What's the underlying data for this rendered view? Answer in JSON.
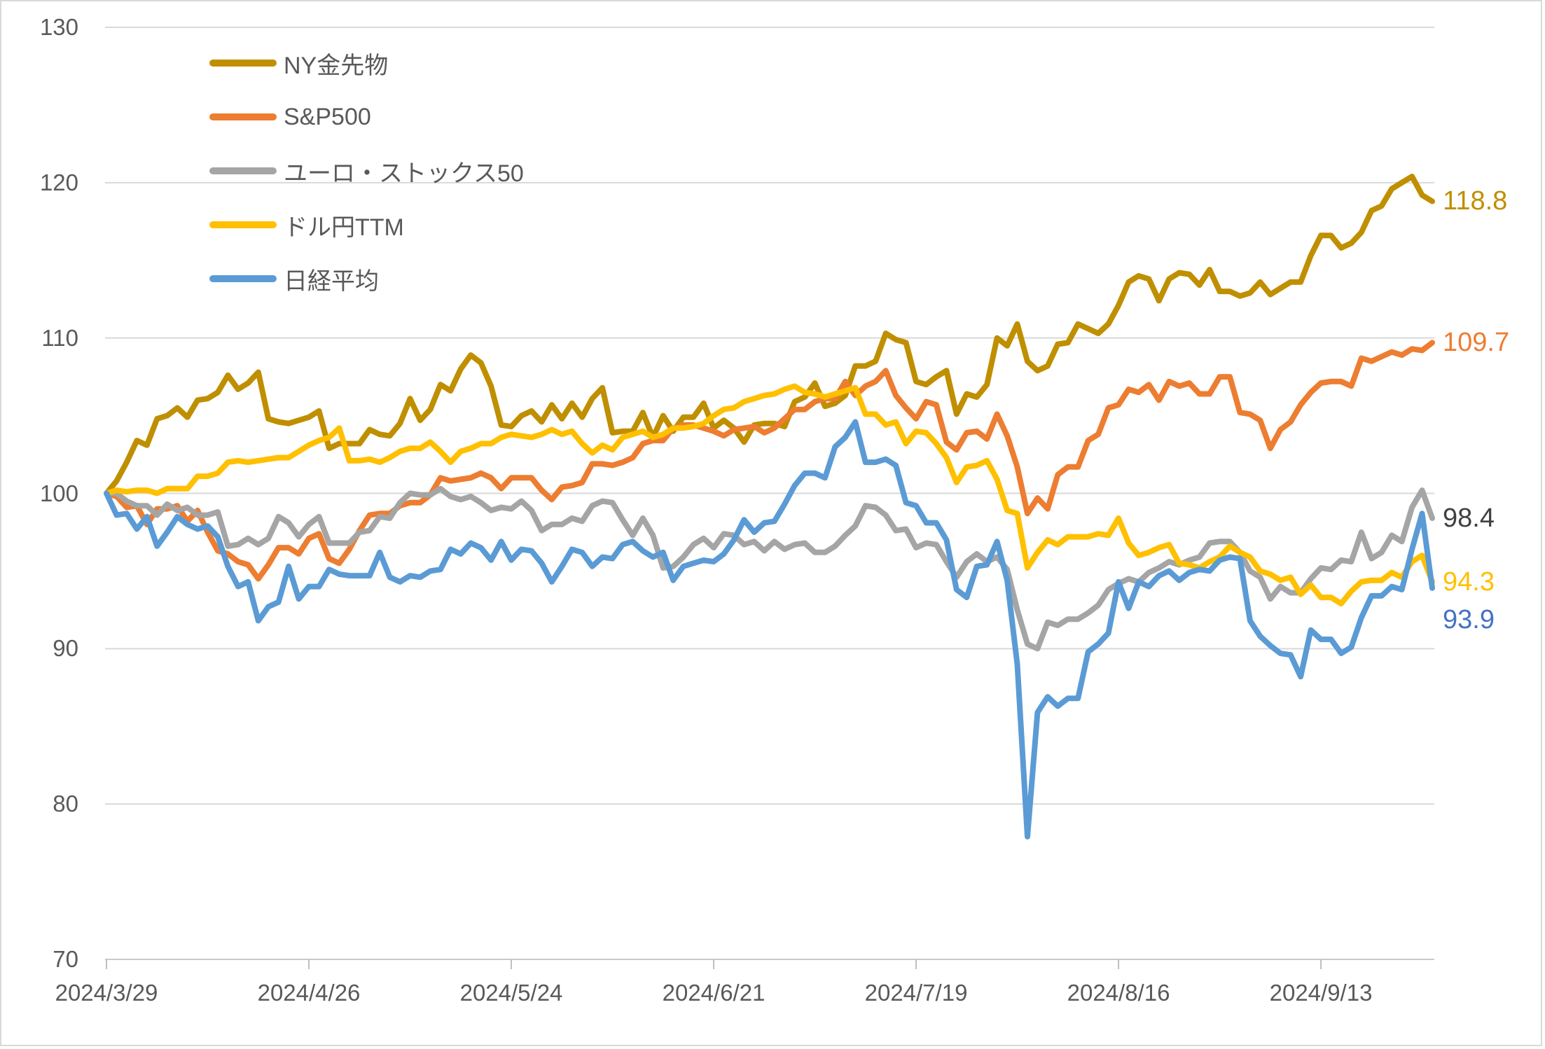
{
  "chart_data": {
    "type": "line",
    "title": "",
    "grid": "horizontal",
    "legend_position": "top-left-vertical",
    "ylim": [
      70,
      130
    ],
    "y_ticks": [
      130,
      120,
      110,
      100,
      90,
      80,
      70
    ],
    "x_axis": {
      "tick_labels": [
        "2024/3/29",
        "2024/4/26",
        "2024/5/24",
        "2024/6/21",
        "2024/7/19",
        "2024/8/16",
        "2024/9/13"
      ],
      "tick_day_indices": [
        0,
        20,
        40,
        60,
        80,
        100,
        120
      ]
    },
    "dates": [
      "2024/3/29",
      "2024/4/1",
      "2024/4/2",
      "2024/4/3",
      "2024/4/4",
      "2024/4/5",
      "2024/4/8",
      "2024/4/9",
      "2024/4/10",
      "2024/4/11",
      "2024/4/12",
      "2024/4/15",
      "2024/4/16",
      "2024/4/17",
      "2024/4/18",
      "2024/4/19",
      "2024/4/22",
      "2024/4/23",
      "2024/4/24",
      "2024/4/25",
      "2024/4/26",
      "2024/4/29",
      "2024/4/30",
      "2024/5/1",
      "2024/5/2",
      "2024/5/3",
      "2024/5/6",
      "2024/5/7",
      "2024/5/8",
      "2024/5/9",
      "2024/5/10",
      "2024/5/13",
      "2024/5/14",
      "2024/5/15",
      "2024/5/16",
      "2024/5/17",
      "2024/5/20",
      "2024/5/21",
      "2024/5/22",
      "2024/5/23",
      "2024/5/24",
      "2024/5/27",
      "2024/5/28",
      "2024/5/29",
      "2024/5/30",
      "2024/5/31",
      "2024/6/3",
      "2024/6/4",
      "2024/6/5",
      "2024/6/6",
      "2024/6/7",
      "2024/6/10",
      "2024/6/11",
      "2024/6/12",
      "2024/6/13",
      "2024/6/14",
      "2024/6/17",
      "2024/6/18",
      "2024/6/19",
      "2024/6/20",
      "2024/6/21",
      "2024/6/24",
      "2024/6/25",
      "2024/6/26",
      "2024/6/27",
      "2024/6/28",
      "2024/7/1",
      "2024/7/2",
      "2024/7/3",
      "2024/7/4",
      "2024/7/5",
      "2024/7/8",
      "2024/7/9",
      "2024/7/10",
      "2024/7/11",
      "2024/7/12",
      "2024/7/15",
      "2024/7/16",
      "2024/7/17",
      "2024/7/18",
      "2024/7/19",
      "2024/7/22",
      "2024/7/23",
      "2024/7/24",
      "2024/7/25",
      "2024/7/26",
      "2024/7/29",
      "2024/7/30",
      "2024/7/31",
      "2024/8/1",
      "2024/8/2",
      "2024/8/5",
      "2024/8/6",
      "2024/8/7",
      "2024/8/8",
      "2024/8/9",
      "2024/8/12",
      "2024/8/13",
      "2024/8/14",
      "2024/8/15",
      "2024/8/16",
      "2024/8/19",
      "2024/8/20",
      "2024/8/21",
      "2024/8/22",
      "2024/8/23",
      "2024/8/26",
      "2024/8/27",
      "2024/8/28",
      "2024/8/29",
      "2024/8/30",
      "2024/9/2",
      "2024/9/3",
      "2024/9/4",
      "2024/9/5",
      "2024/9/6",
      "2024/9/9",
      "2024/9/10",
      "2024/9/11",
      "2024/9/12",
      "2024/9/13",
      "2024/9/16",
      "2024/9/17",
      "2024/9/18",
      "2024/9/19",
      "2024/9/20",
      "2024/9/23",
      "2024/9/24",
      "2024/9/25",
      "2024/9/26",
      "2024/9/27",
      "2024/9/30"
    ],
    "series": [
      {
        "name": "NY金先物",
        "color": "#BF8F00",
        "end_label": "118.8",
        "end_label_color": "#BF8F00",
        "values": [
          100.0,
          100.8,
          102.0,
          103.4,
          103.1,
          104.8,
          105.0,
          105.5,
          104.9,
          106.0,
          106.1,
          106.5,
          107.6,
          106.7,
          107.1,
          107.8,
          104.8,
          104.6,
          104.5,
          104.7,
          104.9,
          105.3,
          102.9,
          103.2,
          103.2,
          103.2,
          104.1,
          103.8,
          103.7,
          104.5,
          106.1,
          104.7,
          105.4,
          107.0,
          106.6,
          108.0,
          108.9,
          108.4,
          106.9,
          104.4,
          104.3,
          105.0,
          105.3,
          104.6,
          105.7,
          104.8,
          105.8,
          104.9,
          106.1,
          106.8,
          103.9,
          104.0,
          104.0,
          105.2,
          103.6,
          105.0,
          104.0,
          104.9,
          104.9,
          105.8,
          104.2,
          104.7,
          104.2,
          103.3,
          104.4,
          104.5,
          104.5,
          104.3,
          105.9,
          106.2,
          107.1,
          105.6,
          105.8,
          106.3,
          108.2,
          108.2,
          108.5,
          110.3,
          109.9,
          109.7,
          107.2,
          107.0,
          107.5,
          107.9,
          105.1,
          106.4,
          106.2,
          107.0,
          110.0,
          109.5,
          110.9,
          108.5,
          107.9,
          108.2,
          109.6,
          109.7,
          110.9,
          110.6,
          110.3,
          110.9,
          112.1,
          113.6,
          114.0,
          113.8,
          112.4,
          113.8,
          114.2,
          114.1,
          113.4,
          114.4,
          113.0,
          113.0,
          112.7,
          112.9,
          113.6,
          112.8,
          113.2,
          113.6,
          113.6,
          115.3,
          116.6,
          116.6,
          115.8,
          116.1,
          116.8,
          118.2,
          118.5,
          119.6,
          120.0,
          120.4,
          119.2,
          118.8
        ]
      },
      {
        "name": "S&P500",
        "color": "#ED7D31",
        "end_label": "109.7",
        "end_label_color": "#ED7D31",
        "values": [
          100.0,
          99.8,
          99.1,
          99.2,
          98.0,
          99.0,
          99.0,
          99.2,
          98.2,
          98.9,
          97.5,
          96.3,
          96.1,
          95.6,
          95.4,
          94.5,
          95.4,
          96.5,
          96.5,
          96.1,
          97.1,
          97.4,
          95.8,
          95.5,
          96.4,
          97.6,
          98.6,
          98.7,
          98.7,
          99.2,
          99.4,
          99.4,
          99.9,
          101.0,
          100.8,
          100.9,
          101.0,
          101.3,
          101.0,
          100.3,
          101.0,
          101.0,
          101.0,
          100.2,
          99.6,
          100.4,
          100.5,
          100.7,
          101.9,
          101.9,
          101.8,
          102.0,
          102.3,
          103.2,
          103.4,
          103.4,
          104.2,
          104.4,
          104.4,
          104.2,
          104.0,
          103.7,
          104.1,
          104.2,
          104.3,
          103.9,
          104.2,
          104.8,
          105.4,
          105.4,
          105.9,
          106.1,
          106.1,
          107.2,
          106.3,
          106.9,
          107.2,
          107.9,
          106.3,
          105.5,
          104.8,
          105.9,
          105.7,
          103.3,
          102.8,
          103.9,
          104.0,
          103.5,
          105.1,
          103.7,
          101.7,
          98.7,
          99.7,
          99.0,
          101.2,
          101.7,
          101.7,
          103.4,
          103.8,
          105.5,
          105.7,
          106.7,
          106.5,
          107.0,
          106.0,
          107.2,
          106.9,
          107.1,
          106.4,
          106.4,
          107.5,
          107.5,
          105.2,
          105.1,
          104.7,
          102.9,
          104.1,
          104.6,
          105.7,
          106.5,
          107.1,
          107.2,
          107.2,
          106.9,
          108.7,
          108.5,
          108.8,
          109.1,
          108.9,
          109.3,
          109.2,
          109.7
        ]
      },
      {
        "name": "ユーロ・ストックス50",
        "color": "#A5A5A5",
        "end_label": "98.4",
        "end_label_color": "#404040",
        "values": [
          100.0,
          100.0,
          99.5,
          99.2,
          99.2,
          98.6,
          99.3,
          98.9,
          99.1,
          98.6,
          98.6,
          98.8,
          96.6,
          96.7,
          97.1,
          96.7,
          97.1,
          98.5,
          98.1,
          97.2,
          98.0,
          98.5,
          96.8,
          96.8,
          96.8,
          97.5,
          97.6,
          98.5,
          98.4,
          99.4,
          100.0,
          99.9,
          99.9,
          100.3,
          99.8,
          99.6,
          99.8,
          99.4,
          98.9,
          99.1,
          99.0,
          99.5,
          98.9,
          97.6,
          98.0,
          98.0,
          98.4,
          98.2,
          99.2,
          99.5,
          99.4,
          98.3,
          97.3,
          98.4,
          97.3,
          95.2,
          95.3,
          95.9,
          96.7,
          97.1,
          96.5,
          97.4,
          97.3,
          96.7,
          96.9,
          96.3,
          96.9,
          96.4,
          96.7,
          96.8,
          96.2,
          96.2,
          96.6,
          97.3,
          97.9,
          99.2,
          99.1,
          98.6,
          97.6,
          97.7,
          96.5,
          96.8,
          96.7,
          95.6,
          94.6,
          95.6,
          96.1,
          95.6,
          95.9,
          95.1,
          92.5,
          90.3,
          90.0,
          91.7,
          91.5,
          91.9,
          91.9,
          92.3,
          92.8,
          93.8,
          94.2,
          94.5,
          94.3,
          94.9,
          95.2,
          95.6,
          95.4,
          95.7,
          95.9,
          96.8,
          96.9,
          96.9,
          96.2,
          95.0,
          94.6,
          93.2,
          94.0,
          93.6,
          93.6,
          94.5,
          95.2,
          95.1,
          95.7,
          95.6,
          97.5,
          95.8,
          96.2,
          97.3,
          96.9,
          99.1,
          100.2,
          98.4
        ]
      },
      {
        "name": "ドル円TTM",
        "color": "#FFC000",
        "end_label": "94.3",
        "end_label_color": "#FFC000",
        "values": [
          100.0,
          100.2,
          100.1,
          100.2,
          100.2,
          100.0,
          100.3,
          100.3,
          100.3,
          101.1,
          101.1,
          101.3,
          102.0,
          102.1,
          102.0,
          102.1,
          102.2,
          102.3,
          102.3,
          102.7,
          103.1,
          103.4,
          103.6,
          104.2,
          102.1,
          102.1,
          102.2,
          102.0,
          102.3,
          102.7,
          102.9,
          102.9,
          103.3,
          102.7,
          102.0,
          102.7,
          102.9,
          103.2,
          103.2,
          103.6,
          103.8,
          103.7,
          103.6,
          103.8,
          104.1,
          103.8,
          104.0,
          103.2,
          102.6,
          103.1,
          102.8,
          103.6,
          103.8,
          104.0,
          103.6,
          103.8,
          104.2,
          104.2,
          104.3,
          104.5,
          105.0,
          105.4,
          105.5,
          105.9,
          106.1,
          106.3,
          106.4,
          106.7,
          106.9,
          106.5,
          106.4,
          106.2,
          106.4,
          106.6,
          106.8,
          105.1,
          105.1,
          104.4,
          104.6,
          103.2,
          104.0,
          103.9,
          103.2,
          102.3,
          100.7,
          101.7,
          101.8,
          102.1,
          100.9,
          98.9,
          98.7,
          95.2,
          96.2,
          97.0,
          96.7,
          97.2,
          97.2,
          97.2,
          97.4,
          97.3,
          98.4,
          96.8,
          96.0,
          96.2,
          96.5,
          96.7,
          95.5,
          95.4,
          95.2,
          95.6,
          95.9,
          96.6,
          96.2,
          95.9,
          95.0,
          94.8,
          94.4,
          94.6,
          93.5,
          94.1,
          93.3,
          93.3,
          92.9,
          93.7,
          94.3,
          94.4,
          94.4,
          94.9,
          94.6,
          95.6,
          96.0,
          94.3
        ]
      },
      {
        "name": "日経平均",
        "color": "#5B9BD5",
        "end_label": "93.9",
        "end_label_color": "#4472C4",
        "values": [
          100.0,
          98.6,
          98.7,
          97.7,
          98.5,
          96.6,
          97.5,
          98.5,
          98.0,
          97.7,
          97.9,
          97.2,
          95.3,
          94.0,
          94.3,
          91.8,
          92.7,
          93.0,
          95.3,
          93.2,
          94.0,
          94.0,
          95.1,
          94.8,
          94.7,
          94.7,
          94.7,
          96.2,
          94.6,
          94.3,
          94.7,
          94.6,
          95.0,
          95.1,
          96.4,
          96.1,
          96.8,
          96.5,
          95.7,
          96.9,
          95.7,
          96.4,
          96.3,
          95.5,
          94.3,
          95.3,
          96.4,
          96.2,
          95.3,
          95.9,
          95.8,
          96.7,
          96.9,
          96.3,
          95.9,
          96.2,
          94.4,
          95.3,
          95.5,
          95.7,
          95.6,
          96.1,
          97.0,
          98.3,
          97.5,
          98.1,
          98.2,
          99.3,
          100.5,
          101.3,
          101.3,
          101.0,
          103.0,
          103.6,
          104.6,
          102.0,
          102.0,
          102.2,
          101.8,
          99.4,
          99.2,
          98.1,
          98.1,
          97.0,
          93.8,
          93.3,
          95.3,
          95.4,
          96.9,
          94.4,
          89.0,
          77.9,
          85.9,
          86.9,
          86.3,
          86.8,
          86.8,
          89.8,
          90.3,
          91.0,
          94.3,
          92.6,
          94.3,
          94.0,
          94.7,
          95.0,
          94.4,
          94.9,
          95.1,
          95.0,
          95.7,
          95.9,
          95.8,
          91.8,
          90.8,
          90.2,
          89.7,
          89.6,
          88.2,
          91.2,
          90.6,
          90.6,
          89.7,
          90.1,
          92.0,
          93.4,
          93.4,
          94.0,
          93.8,
          96.4,
          98.7,
          93.9
        ]
      }
    ]
  },
  "colors": {
    "background": "#FFFFFF",
    "gridline": "#D9D9D9",
    "axis_line": "#C9C9C9",
    "tick_mark": "#BFBFBF",
    "axis_text": "#595959",
    "border": "#D9D9D9"
  }
}
